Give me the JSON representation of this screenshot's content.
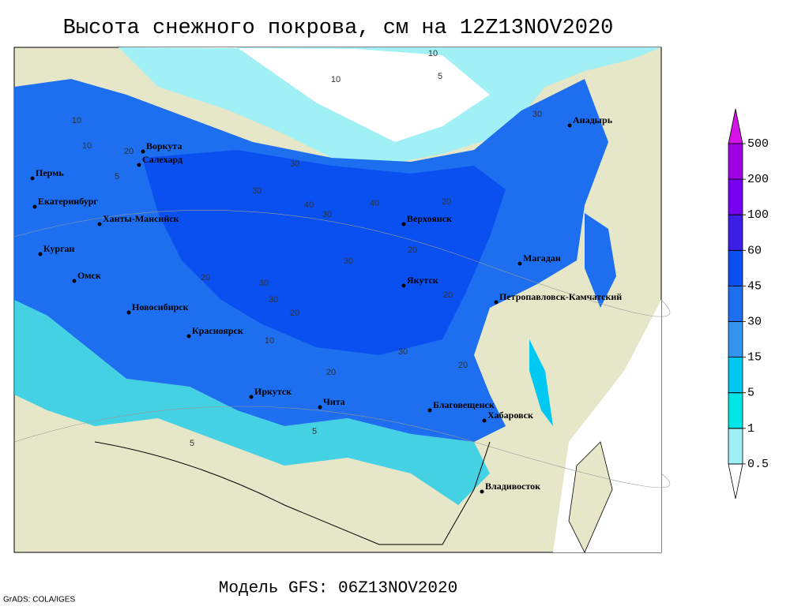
{
  "title": "Высота снежного покрова, см на 12Z13NOV2020",
  "footer": "Модель GFS: 06Z13NOV2020",
  "credit": "GrADS: COLA/IGES",
  "cities": [
    "Воркута",
    "Салехард",
    "Пермь",
    "Екатеринбург",
    "Ханты-Мансийск",
    "Курган",
    "Омск",
    "Новосибирск",
    "Красноярск",
    "Иркутск",
    "Чита",
    "Верхоянск",
    "Якутск",
    "Магадан",
    "Анадырь",
    "Петропавловск-Камчатский",
    "Благовещенск",
    "Хабаровск",
    "Владивосток"
  ],
  "contours": [
    "10",
    "10",
    "5",
    "10",
    "10",
    "20",
    "30",
    "30",
    "40",
    "30",
    "20",
    "20",
    "30",
    "20",
    "30",
    "30",
    "20",
    "40",
    "20",
    "5",
    "10",
    "5",
    "30",
    "30",
    "20",
    "20",
    "5"
  ],
  "legend": {
    "levels": [
      0.5,
      1,
      5,
      15,
      30,
      45,
      60,
      100,
      200,
      500
    ],
    "colors": [
      "#ffffff",
      "#a0f0f5",
      "#00e6e6",
      "#00c8f0",
      "#3296f0",
      "#1e6ef0",
      "#0a50f0",
      "#3c1ee6",
      "#7800f0",
      "#a000e6",
      "#d214e6"
    ]
  }
}
